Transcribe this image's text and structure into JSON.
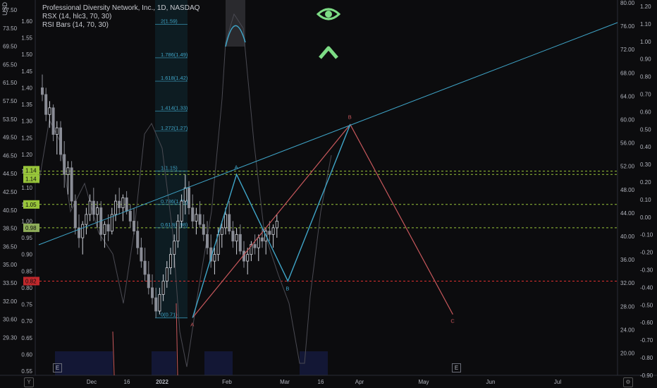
{
  "header": {
    "title": "Professional Diversity Network, Inc., 1D, NASDAQ",
    "indicator1": "RSX (14, hlc3, 70, 30)",
    "indicator2": "RSI Bars (14, 70, 30)",
    "currency": "USD"
  },
  "icons": [
    "eye-icon",
    "chevron-up-icon"
  ],
  "colors": {
    "background": "#0c0c0e",
    "up": "#b2b5be",
    "down": "#d1d4dc",
    "pattern_blue": "#3fa5c8",
    "pattern_red": "#c8585c",
    "level_green": "#98c53a",
    "level_red": "#e03030",
    "rsx": "#4a4a52"
  },
  "corner_buttons": {
    "bottom_left": "Y",
    "bottom_right": "⚙"
  },
  "event_markers": [
    "E",
    "E"
  ],
  "chart_data": {
    "type": "candlestick",
    "x_ticks": [
      "Dec",
      "16",
      "2022",
      "Feb",
      "Mar",
      "16",
      "Apr",
      "May",
      "Jun",
      "Jul"
    ],
    "price_axis": {
      "ticks": [
        1.6,
        1.55,
        1.5,
        1.45,
        1.4,
        1.35,
        1.3,
        1.25,
        1.2,
        1.15,
        1.1,
        1.05,
        1.0,
        0.95,
        0.9,
        0.85,
        0.8,
        0.75,
        0.7,
        0.65,
        0.6,
        0.55
      ],
      "labels": [
        "1.60",
        "1.55",
        "1.50",
        "1.45",
        "1.40",
        "1.35",
        "1.30",
        "1.25",
        "1.20",
        "1.15",
        "1.10",
        "1.05",
        "1.00",
        "0.95",
        "0.90",
        "0.85",
        "0.80",
        "0.75",
        "0.70",
        "0.65",
        "0.60",
        "0.55"
      ],
      "range": [
        0.55,
        1.65
      ]
    },
    "left_axis_labels": [
      "77.50",
      "73.50",
      "69.50",
      "65.50",
      "61.50",
      "57.50",
      "53.50",
      "49.50",
      "46.50",
      "44.50",
      "42.50",
      "40.50",
      "38.50",
      "36.50",
      "35.00",
      "33.50",
      "32.00",
      "30.60",
      "29.30"
    ],
    "rsx_axis_labels": [
      "80.00",
      "76.00",
      "72.00",
      "68.00",
      "64.00",
      "60.00",
      "56.00",
      "52.00",
      "48.00",
      "44.00",
      "40.00",
      "36.00",
      "32.00",
      "28.00",
      "24.00",
      "20.00"
    ],
    "osc_axis_labels": [
      "1.20",
      "1.10",
      "1.00",
      "0.90",
      "0.80",
      "0.70",
      "0.60",
      "0.50",
      "0.40",
      "0.30",
      "0.20",
      "0.10",
      "0.00",
      "-0.10",
      "-0.20",
      "-0.30",
      "-0.40",
      "-0.50",
      "-0.60",
      "-0.70",
      "-0.80",
      "-0.90"
    ],
    "price_labels": [
      {
        "text": "1.14",
        "value": 1.14,
        "color": "#98c53a"
      },
      {
        "text": "1.14",
        "value": 1.14,
        "color": "#98c53a"
      },
      {
        "text": "1.05",
        "value": 1.05,
        "color": "#98c53a"
      },
      {
        "text": "0.98",
        "value": 0.98,
        "color": "#8fae5a"
      },
      {
        "text": "0.82",
        "value": 0.82,
        "color": "#c0282c"
      }
    ],
    "horizontal_levels": [
      {
        "value": 1.15,
        "color": "#98c53a"
      },
      {
        "value": 1.14,
        "color": "#98c53a"
      },
      {
        "value": 1.05,
        "color": "#98c53a"
      },
      {
        "value": 0.98,
        "color": "#98c53a"
      },
      {
        "value": 0.82,
        "color": "#e03030"
      }
    ],
    "fib_levels": [
      {
        "label": "2(1.59)",
        "value": 1.59
      },
      {
        "label": "1.786(1.49)",
        "value": 1.49
      },
      {
        "label": "1.618(1.42)",
        "value": 1.42
      },
      {
        "label": "1.414(1.33)",
        "value": 1.33
      },
      {
        "label": "1.272(1.27)",
        "value": 1.27
      },
      {
        "label": "1(1.15)",
        "value": 1.15
      },
      {
        "label": "0.786(1.05)",
        "value": 1.05
      },
      {
        "label": "0.618(0.98)",
        "value": 0.98
      },
      {
        "label": "0(0.71)",
        "value": 0.71
      }
    ],
    "pattern_points": {
      "red": [
        {
          "label": "A",
          "bar": 41,
          "value": 0.71
        },
        {
          "label": "B",
          "bar": 84,
          "value": 1.29
        },
        {
          "label": "C",
          "bar": 112,
          "value": 0.72
        }
      ],
      "blue": [
        {
          "label": "A",
          "bar": 53,
          "value": 1.14
        },
        {
          "label": "B",
          "bar": 67,
          "value": 0.82
        },
        {
          "label": "B",
          "bar": 84,
          "value": 1.29
        }
      ]
    },
    "ohlc": [
      [
        1.4,
        1.44,
        1.36,
        1.38
      ],
      [
        1.38,
        1.4,
        1.3,
        1.32
      ],
      [
        1.32,
        1.36,
        1.28,
        1.34
      ],
      [
        1.34,
        1.35,
        1.24,
        1.26
      ],
      [
        1.26,
        1.3,
        1.2,
        1.28
      ],
      [
        1.28,
        1.3,
        1.18,
        1.2
      ],
      [
        1.2,
        1.24,
        1.1,
        1.14
      ],
      [
        1.14,
        1.18,
        1.08,
        1.16
      ],
      [
        1.16,
        1.18,
        1.04,
        1.06
      ],
      [
        1.06,
        1.08,
        0.96,
        0.98
      ],
      [
        0.98,
        1.02,
        0.92,
        0.95
      ],
      [
        0.95,
        1.0,
        0.9,
        0.99
      ],
      [
        0.99,
        1.04,
        0.96,
        1.02
      ],
      [
        1.02,
        1.08,
        1.0,
        1.06
      ],
      [
        1.06,
        1.1,
        1.0,
        1.02
      ],
      [
        1.02,
        1.06,
        0.98,
        1.04
      ],
      [
        1.04,
        1.06,
        0.94,
        0.96
      ],
      [
        0.96,
        1.0,
        0.92,
        0.99
      ],
      [
        0.99,
        1.02,
        0.94,
        0.97
      ],
      [
        0.97,
        1.04,
        0.96,
        1.02
      ],
      [
        1.02,
        1.08,
        1.0,
        1.06
      ],
      [
        1.06,
        1.1,
        1.02,
        1.04
      ],
      [
        1.04,
        1.08,
        1.0,
        1.07
      ],
      [
        1.07,
        1.09,
        1.02,
        1.03
      ],
      [
        1.03,
        1.05,
        0.98,
        1.0
      ],
      [
        1.0,
        1.04,
        0.96,
        0.97
      ],
      [
        0.97,
        1.0,
        0.9,
        0.92
      ],
      [
        0.92,
        0.95,
        0.86,
        0.88
      ],
      [
        0.88,
        0.92,
        0.82,
        0.84
      ],
      [
        0.84,
        0.88,
        0.78,
        0.8
      ],
      [
        0.8,
        0.84,
        0.75,
        0.77
      ],
      [
        0.77,
        0.8,
        0.71,
        0.73
      ],
      [
        0.73,
        0.8,
        0.72,
        0.78
      ],
      [
        0.78,
        0.84,
        0.76,
        0.82
      ],
      [
        0.82,
        0.88,
        0.8,
        0.86
      ],
      [
        0.86,
        0.92,
        0.84,
        0.9
      ],
      [
        0.9,
        0.96,
        0.86,
        0.94
      ],
      [
        0.94,
        1.02,
        0.92,
        1.0
      ],
      [
        1.0,
        1.08,
        0.98,
        1.06
      ],
      [
        1.06,
        1.14,
        1.02,
        1.1
      ],
      [
        1.1,
        1.12,
        1.02,
        1.04
      ],
      [
        1.04,
        1.08,
        0.98,
        1.0
      ],
      [
        1.0,
        1.04,
        0.96,
        1.02
      ],
      [
        1.02,
        1.06,
        0.98,
        0.99
      ],
      [
        0.99,
        1.02,
        0.94,
        0.96
      ],
      [
        0.96,
        1.0,
        0.9,
        0.92
      ],
      [
        0.92,
        0.96,
        0.86,
        0.88
      ],
      [
        0.88,
        0.92,
        0.84,
        0.9
      ],
      [
        0.9,
        0.98,
        0.88,
        0.96
      ],
      [
        0.96,
        1.0,
        0.92,
        0.98
      ],
      [
        0.98,
        1.04,
        0.96,
        1.02
      ],
      [
        1.02,
        1.06,
        0.96,
        0.97
      ],
      [
        0.97,
        1.0,
        0.92,
        0.94
      ],
      [
        0.94,
        0.98,
        0.9,
        0.96
      ],
      [
        0.96,
        0.99,
        0.9,
        0.91
      ],
      [
        0.91,
        0.94,
        0.86,
        0.88
      ],
      [
        0.88,
        0.92,
        0.84,
        0.9
      ],
      [
        0.9,
        0.94,
        0.88,
        0.93
      ],
      [
        0.93,
        0.96,
        0.9,
        0.92
      ],
      [
        0.92,
        0.96,
        0.88,
        0.95
      ],
      [
        0.95,
        0.98,
        0.92,
        0.94
      ],
      [
        0.94,
        0.98,
        0.9,
        0.97
      ],
      [
        0.97,
        1.0,
        0.94,
        0.96
      ],
      [
        0.96,
        0.99,
        0.92,
        0.98
      ],
      [
        0.98,
        1.02,
        0.95,
        1.0
      ]
    ]
  }
}
